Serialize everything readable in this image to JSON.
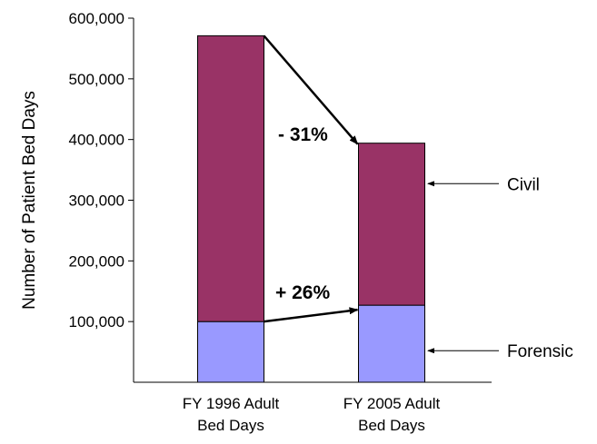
{
  "chart_data": {
    "type": "bar",
    "stacked": true,
    "title": "",
    "xlabel": "",
    "ylabel": "Number of Patient Bed Days",
    "ylim": [
      0,
      600000
    ],
    "yticks": [
      100000,
      200000,
      300000,
      400000,
      500000,
      600000
    ],
    "ytick_labels": [
      "100,000",
      "200,000",
      "300,000",
      "400,000",
      "500,000",
      "600,000"
    ],
    "categories": [
      [
        "FY 1996 Adult",
        "Bed Days"
      ],
      [
        "FY 2005 Adult",
        "Bed Days"
      ]
    ],
    "series": [
      {
        "name": "Forensic",
        "color": "#9999ff",
        "values": [
          100000,
          127000
        ]
      },
      {
        "name": "Civil",
        "color": "#993366",
        "values": [
          471000,
          267000
        ]
      }
    ],
    "annotations": [
      {
        "text": "- 31%",
        "from": "civil-top-1996",
        "to": "civil-top-2005"
      },
      {
        "text": "+ 26%",
        "from": "forensic-top-1996",
        "to": "forensic-top-2005"
      }
    ],
    "legend_placement": "right, pointing to segments",
    "grid": false
  }
}
